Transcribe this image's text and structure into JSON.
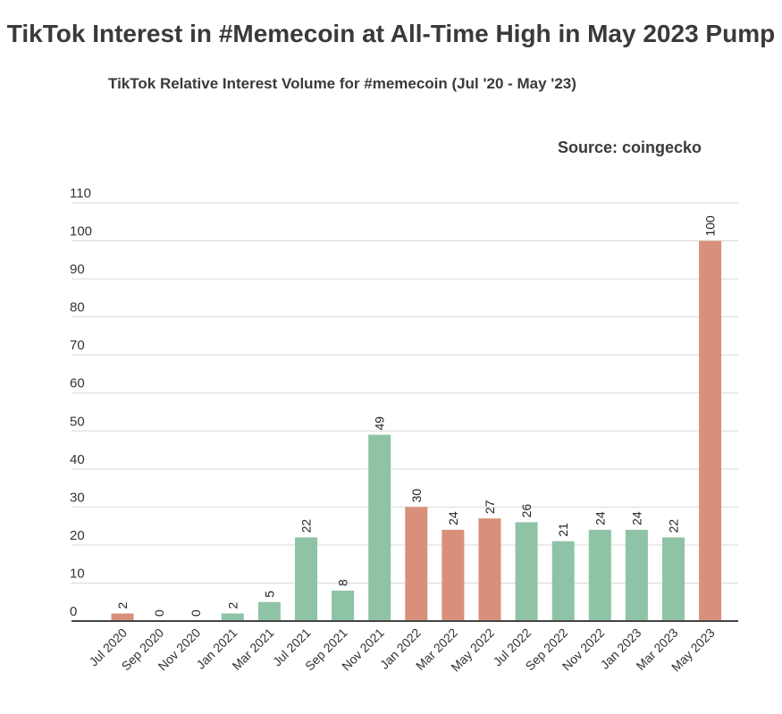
{
  "title": "TikTok Interest in #Memecoin at All-Time High in May 2023 Pump",
  "subtitle": "TikTok Relative Interest Volume for #memecoin (Jul '20 - May '23)",
  "source": "Source: coingecko",
  "colors": {
    "green": "#8fc3a6",
    "orange": "#d9907a",
    "axis": "#444444",
    "grid": "#d9d9d9"
  },
  "chart_data": {
    "type": "bar",
    "categories": [
      "Jul 2020",
      "Sep 2020",
      "Nov 2020",
      "Jan 2021",
      "Mar 2021",
      "Jul 2021",
      "Sep 2021",
      "Nov 2021",
      "Jan 2022",
      "Mar 2022",
      "May 2022",
      "Jul 2022",
      "Sep 2022",
      "Nov 2022",
      "Jan 2023",
      "Mar 2023",
      "May 2023"
    ],
    "values": [
      2,
      0,
      0,
      2,
      5,
      22,
      8,
      49,
      30,
      24,
      27,
      26,
      21,
      24,
      24,
      22,
      100
    ],
    "bar_colors": [
      "orange",
      "green",
      "green",
      "green",
      "green",
      "green",
      "green",
      "green",
      "orange",
      "orange",
      "orange",
      "green",
      "green",
      "green",
      "green",
      "green",
      "orange"
    ],
    "ylim": [
      0,
      110
    ],
    "yticks": [
      0,
      10,
      20,
      30,
      40,
      50,
      60,
      70,
      80,
      90,
      100,
      110
    ],
    "grid": true,
    "xlabel": "",
    "ylabel": ""
  }
}
